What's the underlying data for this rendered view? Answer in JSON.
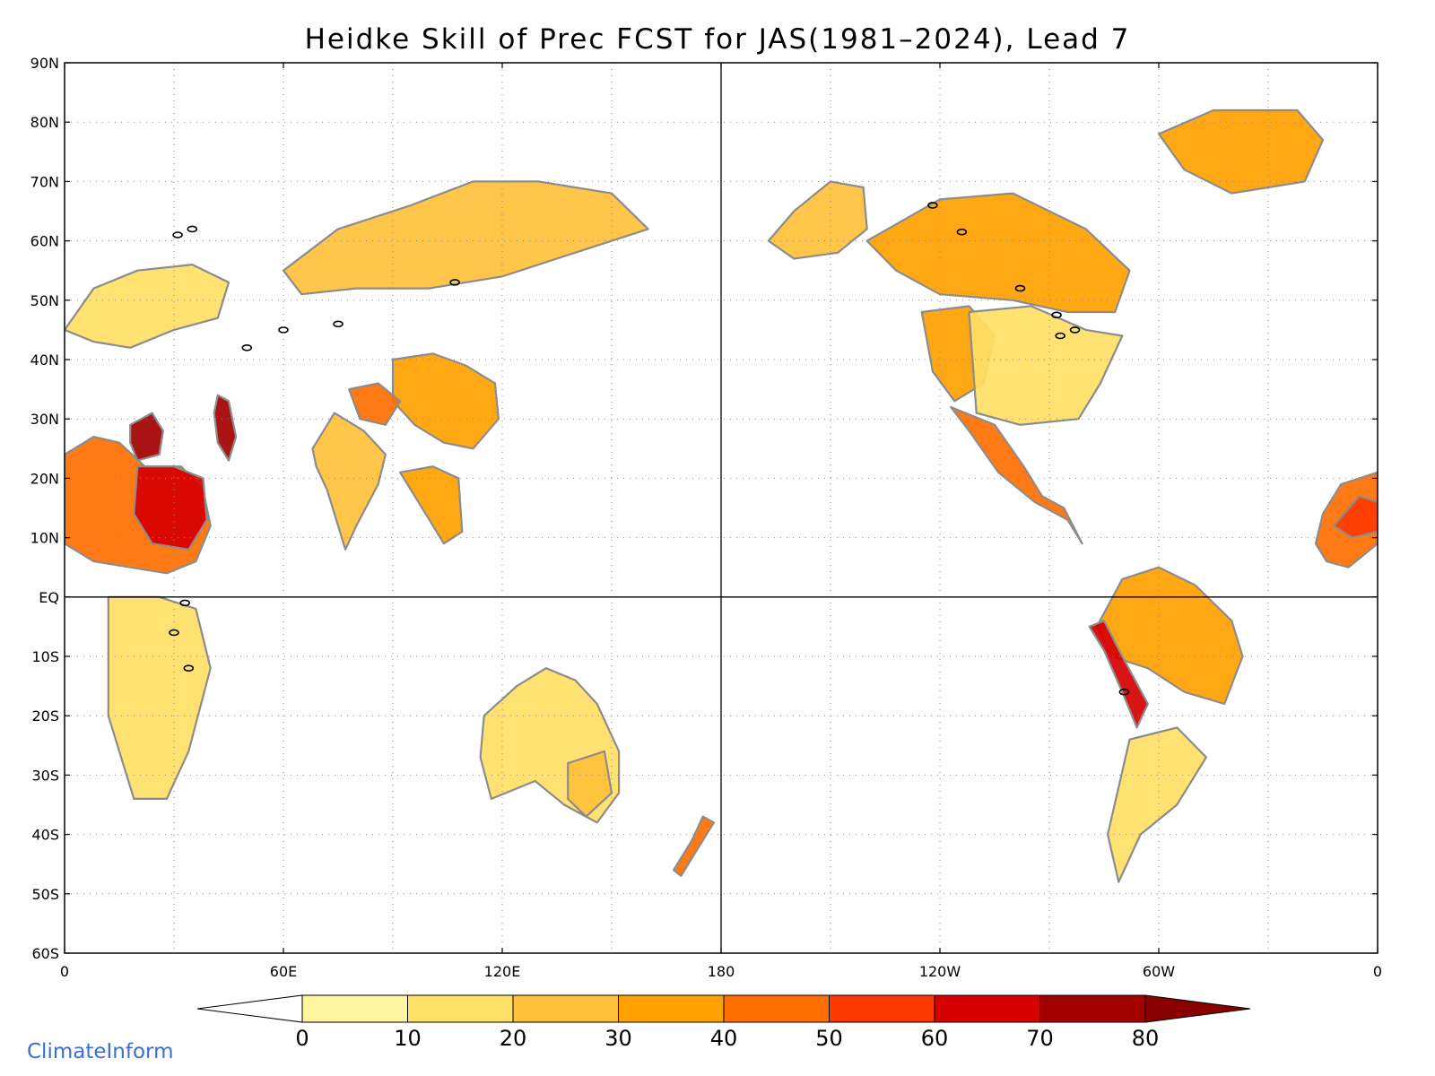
{
  "title": "Heidke Skill of Prec FCST for JAS(1981–2024), Lead 7",
  "brand": "ClimateInform",
  "map": {
    "projection": "equirectangular, Pacific-centered (0 to 360 E)",
    "lon_range": [
      0,
      360
    ],
    "lat_range": [
      -60,
      90
    ],
    "lat_ticks": [
      {
        "lat": 90,
        "label": "90N"
      },
      {
        "lat": 80,
        "label": "80N"
      },
      {
        "lat": 70,
        "label": "70N"
      },
      {
        "lat": 60,
        "label": "60N"
      },
      {
        "lat": 50,
        "label": "50N"
      },
      {
        "lat": 40,
        "label": "40N"
      },
      {
        "lat": 30,
        "label": "30N"
      },
      {
        "lat": 20,
        "label": "20N"
      },
      {
        "lat": 10,
        "label": "10N"
      },
      {
        "lat": 0,
        "label": "EQ"
      },
      {
        "lat": -10,
        "label": "10S"
      },
      {
        "lat": -20,
        "label": "20S"
      },
      {
        "lat": -30,
        "label": "30S"
      },
      {
        "lat": -40,
        "label": "40S"
      },
      {
        "lat": -50,
        "label": "50S"
      },
      {
        "lat": -60,
        "label": "60S"
      }
    ],
    "lon_ticks": [
      {
        "lon": 0,
        "label": "0"
      },
      {
        "lon": 60,
        "label": "60E"
      },
      {
        "lon": 120,
        "label": "120E"
      },
      {
        "lon": 180,
        "label": "180"
      },
      {
        "lon": 240,
        "label": "120W"
      },
      {
        "lon": 300,
        "label": "60W"
      },
      {
        "lon": 360,
        "label": "0"
      }
    ],
    "grid": "dotted",
    "reference_lines": {
      "equator": true,
      "dateline": true
    },
    "coastline_color": "#8c8c8c",
    "lake_color": "#000000",
    "regions": [
      {
        "name": "sahel",
        "outline": [
          [
            0,
            9
          ],
          [
            0,
            24
          ],
          [
            8,
            27
          ],
          [
            15,
            26
          ],
          [
            22,
            22
          ],
          [
            32,
            22
          ],
          [
            38,
            18
          ],
          [
            40,
            12
          ],
          [
            36,
            6
          ],
          [
            28,
            4
          ],
          [
            18,
            5
          ],
          [
            8,
            6
          ]
        ],
        "level": 40
      },
      {
        "name": "sudan",
        "outline": [
          [
            20,
            22
          ],
          [
            30,
            22
          ],
          [
            38,
            20
          ],
          [
            39,
            13
          ],
          [
            34,
            8
          ],
          [
            24,
            9
          ],
          [
            19,
            14
          ]
        ],
        "level": 60
      },
      {
        "name": "libya",
        "outline": [
          [
            18,
            29
          ],
          [
            24,
            31
          ],
          [
            27,
            28
          ],
          [
            26,
            24
          ],
          [
            20,
            23
          ],
          [
            18,
            26
          ]
        ],
        "level": 70
      },
      {
        "name": "arabia",
        "outline": [
          [
            42,
            34
          ],
          [
            45,
            33
          ],
          [
            47,
            27
          ],
          [
            45,
            23
          ],
          [
            42,
            26
          ],
          [
            41,
            31
          ]
        ],
        "level": 70
      },
      {
        "name": "southern-africa",
        "outline": [
          [
            12,
            0
          ],
          [
            26,
            0
          ],
          [
            36,
            -2
          ],
          [
            40,
            -12
          ],
          [
            34,
            -26
          ],
          [
            28,
            -34
          ],
          [
            19,
            -34
          ],
          [
            12,
            -20
          ],
          [
            12,
            -8
          ]
        ],
        "level": 10
      },
      {
        "name": "india",
        "outline": [
          [
            68,
            25
          ],
          [
            74,
            31
          ],
          [
            82,
            28
          ],
          [
            88,
            24
          ],
          [
            86,
            19
          ],
          [
            80,
            12
          ],
          [
            77,
            8
          ],
          [
            72,
            18
          ],
          [
            69,
            22
          ]
        ],
        "level": 20
      },
      {
        "name": "se-asia",
        "outline": [
          [
            92,
            21
          ],
          [
            101,
            22
          ],
          [
            108,
            20
          ],
          [
            109,
            11
          ],
          [
            104,
            9
          ],
          [
            100,
            13
          ],
          [
            97,
            16
          ]
        ],
        "level": 30
      },
      {
        "name": "china",
        "outline": [
          [
            90,
            40
          ],
          [
            101,
            41
          ],
          [
            110,
            39
          ],
          [
            118,
            36
          ],
          [
            119,
            30
          ],
          [
            112,
            25
          ],
          [
            104,
            26
          ],
          [
            96,
            29
          ],
          [
            90,
            33
          ]
        ],
        "level": 30
      },
      {
        "name": "tibet",
        "outline": [
          [
            78,
            35
          ],
          [
            86,
            36
          ],
          [
            92,
            33
          ],
          [
            88,
            29
          ],
          [
            81,
            30
          ]
        ],
        "level": 40
      },
      {
        "name": "siberia",
        "outline": [
          [
            60,
            55
          ],
          [
            75,
            62
          ],
          [
            95,
            66
          ],
          [
            112,
            70
          ],
          [
            130,
            70
          ],
          [
            150,
            68
          ],
          [
            160,
            62
          ],
          [
            140,
            58
          ],
          [
            120,
            54
          ],
          [
            100,
            52
          ],
          [
            80,
            52
          ],
          [
            65,
            51
          ]
        ],
        "level": 20
      },
      {
        "name": "europe",
        "outline": [
          [
            0,
            45
          ],
          [
            8,
            52
          ],
          [
            20,
            55
          ],
          [
            35,
            56
          ],
          [
            45,
            53
          ],
          [
            42,
            47
          ],
          [
            30,
            45
          ],
          [
            18,
            42
          ],
          [
            8,
            43
          ]
        ],
        "level": 10
      },
      {
        "name": "australia",
        "outline": [
          [
            115,
            -20
          ],
          [
            124,
            -15
          ],
          [
            132,
            -12
          ],
          [
            140,
            -14
          ],
          [
            146,
            -18
          ],
          [
            152,
            -26
          ],
          [
            152,
            -33
          ],
          [
            146,
            -38
          ],
          [
            137,
            -35
          ],
          [
            129,
            -31
          ],
          [
            117,
            -34
          ],
          [
            114,
            -27
          ]
        ],
        "level": 10
      },
      {
        "name": "australia-east",
        "outline": [
          [
            138,
            -28
          ],
          [
            148,
            -26
          ],
          [
            150,
            -33
          ],
          [
            143,
            -37
          ],
          [
            138,
            -34
          ]
        ],
        "level": 20
      },
      {
        "name": "new-zealand",
        "outline": [
          [
            167,
            -46
          ],
          [
            172,
            -41
          ],
          [
            175,
            -37
          ],
          [
            178,
            -38
          ],
          [
            174,
            -42
          ],
          [
            169,
            -47
          ]
        ],
        "level": 40
      },
      {
        "name": "canada",
        "outline": [
          [
            220,
            60
          ],
          [
            240,
            67
          ],
          [
            260,
            68
          ],
          [
            280,
            62
          ],
          [
            292,
            55
          ],
          [
            288,
            48
          ],
          [
            275,
            48
          ],
          [
            260,
            50
          ],
          [
            240,
            51
          ],
          [
            228,
            55
          ]
        ],
        "level": 30
      },
      {
        "name": "us-west",
        "outline": [
          [
            235,
            48
          ],
          [
            248,
            49
          ],
          [
            255,
            44
          ],
          [
            252,
            36
          ],
          [
            244,
            33
          ],
          [
            238,
            38
          ]
        ],
        "level": 30
      },
      {
        "name": "us",
        "outline": [
          [
            248,
            48
          ],
          [
            265,
            49
          ],
          [
            280,
            45
          ],
          [
            290,
            44
          ],
          [
            284,
            36
          ],
          [
            278,
            30
          ],
          [
            262,
            29
          ],
          [
            250,
            31
          ]
        ],
        "level": 10
      },
      {
        "name": "mexico",
        "outline": [
          [
            243,
            32
          ],
          [
            255,
            29
          ],
          [
            263,
            22
          ],
          [
            268,
            17
          ],
          [
            274,
            15
          ],
          [
            279,
            9
          ],
          [
            275,
            13
          ],
          [
            266,
            16
          ],
          [
            256,
            21
          ],
          [
            248,
            28
          ]
        ],
        "level": 40
      },
      {
        "name": "greenland",
        "outline": [
          [
            300,
            78
          ],
          [
            315,
            82
          ],
          [
            338,
            82
          ],
          [
            345,
            77
          ],
          [
            340,
            70
          ],
          [
            320,
            68
          ],
          [
            307,
            72
          ]
        ],
        "level": 30
      },
      {
        "name": "amazon",
        "outline": [
          [
            283,
            -5
          ],
          [
            290,
            3
          ],
          [
            300,
            5
          ],
          [
            310,
            2
          ],
          [
            320,
            -4
          ],
          [
            323,
            -10
          ],
          [
            318,
            -18
          ],
          [
            307,
            -16
          ],
          [
            297,
            -12
          ],
          [
            287,
            -10
          ]
        ],
        "level": 30
      },
      {
        "name": "andes",
        "outline": [
          [
            281,
            -5
          ],
          [
            285,
            -9
          ],
          [
            290,
            -16
          ],
          [
            294,
            -22
          ],
          [
            297,
            -18
          ],
          [
            290,
            -10
          ],
          [
            285,
            -4
          ]
        ],
        "level": 60
      },
      {
        "name": "south-america-south",
        "outline": [
          [
            292,
            -24
          ],
          [
            305,
            -22
          ],
          [
            313,
            -27
          ],
          [
            305,
            -35
          ],
          [
            295,
            -40
          ],
          [
            289,
            -48
          ],
          [
            286,
            -40
          ]
        ],
        "level": 10
      },
      {
        "name": "west-africa",
        "outline": [
          [
            343,
            9
          ],
          [
            345,
            14
          ],
          [
            350,
            19
          ],
          [
            360,
            21
          ],
          [
            360,
            9
          ],
          [
            352,
            5
          ],
          [
            346,
            6
          ]
        ],
        "level": 40
      },
      {
        "name": "west-africa-core",
        "outline": [
          [
            348,
            12
          ],
          [
            355,
            17
          ],
          [
            360,
            16
          ],
          [
            360,
            11
          ],
          [
            353,
            10
          ]
        ],
        "level": 50
      },
      {
        "name": "alaska",
        "outline": [
          [
            193,
            60
          ],
          [
            200,
            65
          ],
          [
            210,
            70
          ],
          [
            219,
            69
          ],
          [
            220,
            62
          ],
          [
            212,
            58
          ],
          [
            200,
            57
          ]
        ],
        "level": 20
      }
    ],
    "lakes": [
      {
        "name": "ladoga",
        "pos": [
          31,
          61
        ]
      },
      {
        "name": "onega",
        "pos": [
          35,
          62
        ]
      },
      {
        "name": "baikal",
        "pos": [
          107,
          53
        ]
      },
      {
        "name": "balkhash",
        "pos": [
          75,
          46
        ]
      },
      {
        "name": "aral",
        "pos": [
          60,
          45
        ]
      },
      {
        "name": "caspian",
        "pos": [
          50,
          42
        ]
      },
      {
        "name": "victoria",
        "pos": [
          33,
          -1
        ]
      },
      {
        "name": "tanganyika",
        "pos": [
          30,
          -6
        ]
      },
      {
        "name": "malawi",
        "pos": [
          34,
          -12
        ]
      },
      {
        "name": "superior",
        "pos": [
          272,
          47.5
        ]
      },
      {
        "name": "michigan",
        "pos": [
          273,
          44
        ]
      },
      {
        "name": "huron",
        "pos": [
          277,
          45
        ]
      },
      {
        "name": "great-bear",
        "pos": [
          238,
          66
        ]
      },
      {
        "name": "great-slave",
        "pos": [
          246,
          61.5
        ]
      },
      {
        "name": "winnipeg",
        "pos": [
          262,
          52
        ]
      },
      {
        "name": "titicaca",
        "pos": [
          290.5,
          -16
        ]
      }
    ]
  },
  "colorbar": {
    "levels": [
      0,
      10,
      20,
      30,
      40,
      50,
      60,
      70,
      80
    ],
    "labels": [
      "0",
      "10",
      "20",
      "30",
      "40",
      "50",
      "60",
      "70",
      "80"
    ],
    "colors": [
      "#ffffff",
      "#fff4a0",
      "#ffe066",
      "#ffc13a",
      "#ffa100",
      "#ff6e00",
      "#ff3a00",
      "#d60000",
      "#a30000",
      "#8a0000"
    ],
    "extend": "both"
  }
}
